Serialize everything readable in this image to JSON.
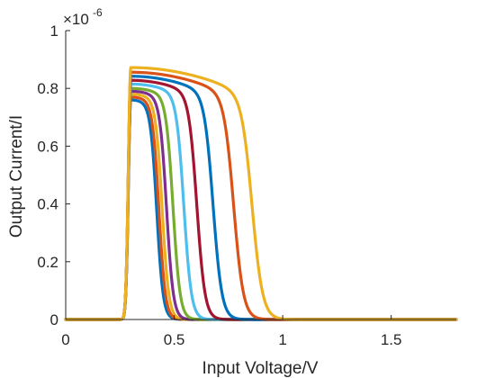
{
  "chart_data": {
    "type": "line",
    "title": "",
    "xlabel": "Input Voltage/V",
    "ylabel": "Output Current/I",
    "xlim": [
      0,
      1.8
    ],
    "ylim": [
      0,
      1
    ],
    "y_exponent_label": "×10",
    "y_exponent_power": "-6",
    "x_ticks": [
      0,
      0.5,
      1,
      1.5
    ],
    "x_tick_labels": [
      "0",
      "0.5",
      "1",
      "1.5"
    ],
    "y_ticks": [
      0,
      0.2,
      0.4,
      0.6,
      0.8,
      1
    ],
    "y_tick_labels": [
      "0",
      "0.2",
      "0.4",
      "0.6",
      "0.8",
      "1"
    ],
    "grid": false,
    "rise_voltage": 0.3,
    "series": [
      {
        "color": "#0072BD",
        "peak": 0.76,
        "v50": 0.42
      },
      {
        "color": "#D95319",
        "peak": 0.77,
        "v50": 0.43
      },
      {
        "color": "#EDB120",
        "peak": 0.78,
        "v50": 0.445
      },
      {
        "color": "#7E2F8E",
        "peak": 0.79,
        "v50": 0.465
      },
      {
        "color": "#77AC30",
        "peak": 0.8,
        "v50": 0.495
      },
      {
        "color": "#4DBEEE",
        "peak": 0.815,
        "v50": 0.545
      },
      {
        "color": "#A2142F",
        "peak": 0.828,
        "v50": 0.605
      },
      {
        "color": "#0072BD",
        "peak": 0.842,
        "v50": 0.68
      },
      {
        "color": "#D95319",
        "peak": 0.856,
        "v50": 0.775
      },
      {
        "color": "#EDB120",
        "peak": 0.872,
        "v50": 0.86
      }
    ]
  }
}
